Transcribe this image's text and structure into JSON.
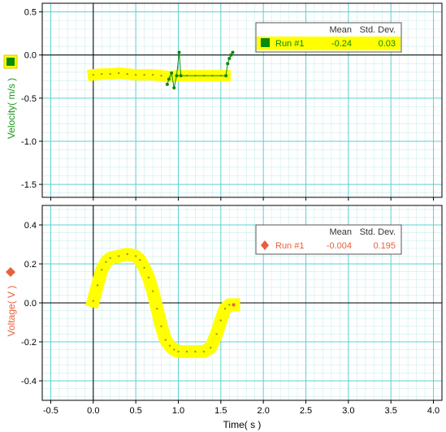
{
  "chart_data": [
    {
      "type": "scatter",
      "ylabel": "Velocity( m/s )",
      "xlim": [
        -0.6,
        4.1
      ],
      "ylim": [
        -1.65,
        0.6
      ],
      "x_ticks": [
        "-0.5",
        "0.0",
        "0.5",
        "1.0",
        "1.5",
        "2.0",
        "2.5",
        "3.0",
        "3.5",
        "4.0"
      ],
      "y_ticks": [
        {
          "value": 0.5,
          "label": "0.5"
        },
        {
          "value": 0.0,
          "label": "0.0"
        },
        {
          "value": -0.5,
          "label": "-0.5"
        },
        {
          "value": -1.0,
          "label": "-1.0"
        },
        {
          "value": -1.5,
          "label": "-1.5"
        }
      ],
      "grid": true,
      "colors": {
        "axis_label": "#1a9a1a",
        "marker": "#0a8a0a",
        "trace": "#ffff00",
        "grid_major": "#5fd0d0",
        "grid_minor": "#cceeee"
      },
      "legend": {
        "position": "top-right",
        "headers": [
          "Mean",
          "Std. Dev."
        ],
        "run": "Run #1",
        "mean": "-0.24",
        "std": "0.03",
        "highlight": "#ffff00"
      },
      "series": [
        {
          "name": "Run #1",
          "band": [
            [
              0.0,
              -0.23
            ],
            [
              0.1,
              -0.22
            ],
            [
              0.2,
              -0.22
            ],
            [
              0.3,
              -0.21
            ],
            [
              0.4,
              -0.22
            ],
            [
              0.5,
              -0.23
            ],
            [
              0.6,
              -0.23
            ],
            [
              0.7,
              -0.23
            ],
            [
              0.8,
              -0.24
            ],
            [
              0.9,
              -0.25
            ],
            [
              1.0,
              -0.24
            ],
            [
              1.1,
              -0.24
            ],
            [
              1.2,
              -0.24
            ],
            [
              1.3,
              -0.24
            ],
            [
              1.4,
              -0.24
            ],
            [
              1.5,
              -0.24
            ],
            [
              1.55,
              -0.24
            ]
          ],
          "points": [
            [
              0.87,
              -0.34
            ],
            [
              0.89,
              -0.28
            ],
            [
              0.92,
              -0.21
            ],
            [
              0.95,
              -0.38
            ],
            [
              0.98,
              -0.24
            ],
            [
              1.01,
              0.03
            ],
            [
              1.03,
              -0.24
            ],
            [
              1.56,
              -0.24
            ],
            [
              1.58,
              -0.1
            ],
            [
              1.6,
              -0.04
            ],
            [
              1.62,
              0.0
            ],
            [
              1.64,
              0.03
            ]
          ]
        }
      ]
    },
    {
      "type": "scatter",
      "xlabel": "Time( s )",
      "ylabel": "Voltage( V )",
      "xlim": [
        -0.6,
        4.1
      ],
      "ylim": [
        -0.5,
        0.5
      ],
      "x_ticks": [
        "-0.5",
        "0.0",
        "0.5",
        "1.0",
        "1.5",
        "2.0",
        "2.5",
        "3.0",
        "3.5",
        "4.0"
      ],
      "y_ticks": [
        {
          "value": 0.4,
          "label": "0.4"
        },
        {
          "value": 0.2,
          "label": "0.2"
        },
        {
          "value": 0.0,
          "label": "0.0"
        },
        {
          "value": -0.2,
          "label": "-0.2"
        },
        {
          "value": -0.4,
          "label": "-0.4"
        }
      ],
      "grid": true,
      "colors": {
        "axis_label": "#e8603a",
        "marker": "#e8603a",
        "trace": "#ffff00",
        "grid_major": "#5fd0d0",
        "grid_minor": "#cceeee"
      },
      "legend": {
        "position": "top-right",
        "headers": [
          "Mean",
          "Std. Dev."
        ],
        "run": "Run #1",
        "mean": "-0.004",
        "std": "0.195"
      },
      "series": [
        {
          "name": "Run #1",
          "band": [
            [
              0.0,
              0.01
            ],
            [
              0.05,
              0.09
            ],
            [
              0.1,
              0.17
            ],
            [
              0.15,
              0.21
            ],
            [
              0.2,
              0.23
            ],
            [
              0.3,
              0.24
            ],
            [
              0.4,
              0.25
            ],
            [
              0.5,
              0.24
            ],
            [
              0.55,
              0.22
            ],
            [
              0.6,
              0.18
            ],
            [
              0.65,
              0.13
            ],
            [
              0.7,
              0.06
            ],
            [
              0.75,
              -0.03
            ],
            [
              0.8,
              -0.12
            ],
            [
              0.85,
              -0.19
            ],
            [
              0.9,
              -0.22
            ],
            [
              0.95,
              -0.24
            ],
            [
              1.0,
              -0.25
            ],
            [
              1.1,
              -0.25
            ],
            [
              1.2,
              -0.25
            ],
            [
              1.3,
              -0.25
            ],
            [
              1.38,
              -0.23
            ],
            [
              1.45,
              -0.16
            ],
            [
              1.5,
              -0.09
            ],
            [
              1.55,
              -0.03
            ],
            [
              1.6,
              -0.01
            ],
            [
              1.65,
              -0.01
            ]
          ],
          "points": [
            [
              1.65,
              -0.01
            ]
          ]
        }
      ]
    }
  ]
}
